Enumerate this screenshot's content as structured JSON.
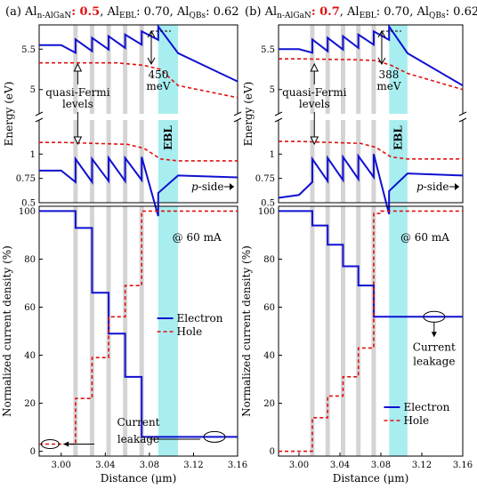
{
  "colors": {
    "electron": "#1010d0",
    "hole": "#e01010",
    "qb_stripe": "#d4d4d4",
    "ebl_band": "#a8eef0",
    "tag_highlight": "#e01010"
  },
  "panels": [
    {
      "tag": "(a) Al",
      "tag_sub": "n-AlGaN",
      "tag_value": ": 0.5",
      "ebl_part": ", Al",
      "ebl_sub": "EBL",
      "ebl_rest": ": 0.70, Al",
      "qb_sub": "QBs",
      "qb_rest": ": 0.62",
      "barrier_label": "450",
      "barrier_unit": "meV",
      "qfl_line1": "quasi-Fermi",
      "qfl_line2": "levels",
      "ebl_label": "EBL",
      "pside_italic": "p",
      "pside_rest": "-side",
      "current_label": "@ 60 mA",
      "leak_line1": "Current",
      "leak_line2": "leakage",
      "legend_electron": "Electron",
      "legend_hole": "Hole"
    },
    {
      "tag": "(b) Al",
      "tag_sub": "n-AlGaN",
      "tag_value": ": 0.7",
      "ebl_part": ", Al",
      "ebl_sub": "EBL",
      "ebl_rest": ": 0.70, Al",
      "qb_sub": "QBs",
      "qb_rest": ": 0.62",
      "barrier_label": "388",
      "barrier_unit": "meV",
      "qfl_line1": "quasi-Fermi",
      "qfl_line2": "levels",
      "ebl_label": "EBL",
      "pside_italic": "p",
      "pside_rest": "-side",
      "current_label": "@ 60 mA",
      "leak_line1": "Current",
      "leak_line2": "leakage",
      "legend_electron": "Electron",
      "legend_hole": "Hole"
    }
  ],
  "chart_data": [
    {
      "type": "line",
      "panel": "a-top",
      "ylabel": "Energy (eV)",
      "xlim": [
        2.98,
        3.16
      ],
      "ylim_upper": [
        4.7,
        5.8
      ],
      "ylim_lower": [
        0.5,
        1.35
      ],
      "yticks_upper": [
        "5.5",
        "5"
      ],
      "yticks_lower": [
        "1",
        "0.75",
        "0.5"
      ],
      "qb_positions": [
        3.013,
        3.028,
        3.043,
        3.058,
        3.073
      ],
      "ebl_range": [
        3.088,
        3.106
      ],
      "series": [
        {
          "name": "Electron",
          "x": [
            2.98,
            3.0,
            3.013,
            3.028,
            3.043,
            3.058,
            3.073,
            3.088,
            3.106,
            3.16
          ],
          "y": [
            5.55,
            5.55,
            5.62,
            5.64,
            5.66,
            5.68,
            5.72,
            5.78,
            5.45,
            5.1
          ]
        },
        {
          "name": "Hole",
          "x": [
            2.98,
            3.0,
            3.05,
            3.075,
            3.09,
            3.106,
            3.16
          ],
          "y": [
            5.33,
            5.33,
            5.33,
            5.3,
            5.25,
            5.05,
            4.9
          ]
        },
        {
          "name": "Electron",
          "x": [
            2.98,
            3.0,
            3.013,
            3.028,
            3.043,
            3.058,
            3.073,
            3.088,
            3.106,
            3.16
          ],
          "y": [
            0.83,
            0.83,
            0.95,
            0.95,
            0.96,
            0.96,
            0.97,
            0.6,
            0.78,
            0.76
          ]
        },
        {
          "name": "Hole",
          "x": [
            2.98,
            3.0,
            3.06,
            3.075,
            3.09,
            3.106,
            3.16
          ],
          "y": [
            1.12,
            1.12,
            1.1,
            1.06,
            0.95,
            0.93,
            0.93
          ]
        }
      ]
    },
    {
      "type": "line",
      "panel": "a-bottom",
      "ylabel": "Normalized current density (%)",
      "xlabel": "Distance (μm)",
      "xlim": [
        2.98,
        3.16
      ],
      "ylim": [
        -2,
        102
      ],
      "xticks": [
        "3.00",
        "3.04",
        "3.08",
        "3.12",
        "3.16"
      ],
      "yticks": [
        "100",
        "80",
        "60",
        "40",
        "20",
        "0"
      ],
      "series": [
        {
          "name": "Electron",
          "x": [
            2.98,
            2.995,
            3.006,
            3.013,
            3.028,
            3.043,
            3.058,
            3.073,
            3.08,
            3.16
          ],
          "y": [
            100,
            100,
            100,
            93,
            66,
            49,
            31,
            6,
            6,
            6
          ]
        },
        {
          "name": "Hole",
          "x": [
            2.98,
            3.0,
            3.013,
            3.028,
            3.043,
            3.058,
            3.073,
            3.08,
            3.16
          ],
          "y": [
            3,
            3,
            22,
            39,
            56,
            69,
            100,
            100,
            100
          ]
        }
      ]
    },
    {
      "type": "line",
      "panel": "b-top",
      "ylabel": "Energy (eV)",
      "xlim": [
        2.98,
        3.16
      ],
      "ylim_upper": [
        4.7,
        5.8
      ],
      "ylim_lower": [
        0.5,
        1.35
      ],
      "yticks_upper": [
        "5.5",
        "5"
      ],
      "yticks_lower": [
        "1",
        "0.75",
        "0.5"
      ],
      "qb_positions": [
        3.013,
        3.028,
        3.043,
        3.058,
        3.073
      ],
      "ebl_range": [
        3.088,
        3.106
      ],
      "series": [
        {
          "name": "Electron",
          "x": [
            2.98,
            3.0,
            3.013,
            3.028,
            3.043,
            3.058,
            3.073,
            3.088,
            3.106,
            3.16
          ],
          "y": [
            5.5,
            5.5,
            5.62,
            5.64,
            5.66,
            5.68,
            5.72,
            5.78,
            5.45,
            5.05
          ]
        },
        {
          "name": "Hole",
          "x": [
            2.98,
            3.0,
            3.05,
            3.075,
            3.09,
            3.106,
            3.16
          ],
          "y": [
            5.38,
            5.38,
            5.37,
            5.36,
            5.3,
            5.2,
            5.0
          ]
        },
        {
          "name": "Electron",
          "x": [
            2.98,
            3.0,
            3.013,
            3.028,
            3.043,
            3.058,
            3.073,
            3.088,
            3.106,
            3.16
          ],
          "y": [
            0.55,
            0.58,
            0.95,
            0.96,
            0.97,
            0.98,
            1.0,
            0.62,
            0.8,
            0.78
          ]
        },
        {
          "name": "Hole",
          "x": [
            2.98,
            3.0,
            3.06,
            3.075,
            3.09,
            3.106,
            3.16
          ],
          "y": [
            1.13,
            1.13,
            1.11,
            1.07,
            0.97,
            0.95,
            0.95
          ]
        }
      ]
    },
    {
      "type": "line",
      "panel": "b-bottom",
      "ylabel": "Normalized current density (%)",
      "xlabel": "Distance (μm)",
      "xlim": [
        2.98,
        3.16
      ],
      "ylim": [
        -2,
        102
      ],
      "xticks": [
        "3.00",
        "3.04",
        "3.08",
        "3.12",
        "3.16"
      ],
      "yticks": [
        "100",
        "80",
        "60",
        "40",
        "20",
        "0"
      ],
      "series": [
        {
          "name": "Electron",
          "x": [
            2.98,
            3.0,
            3.006,
            3.013,
            3.028,
            3.043,
            3.058,
            3.073,
            3.08,
            3.16
          ],
          "y": [
            100,
            100,
            100,
            94,
            86,
            77,
            69,
            56,
            56,
            56
          ]
        },
        {
          "name": "Hole",
          "x": [
            2.98,
            3.0,
            3.013,
            3.028,
            3.043,
            3.058,
            3.073,
            3.08,
            3.16
          ],
          "y": [
            0,
            0,
            14,
            23,
            31,
            43,
            99,
            100,
            100
          ]
        }
      ]
    }
  ]
}
